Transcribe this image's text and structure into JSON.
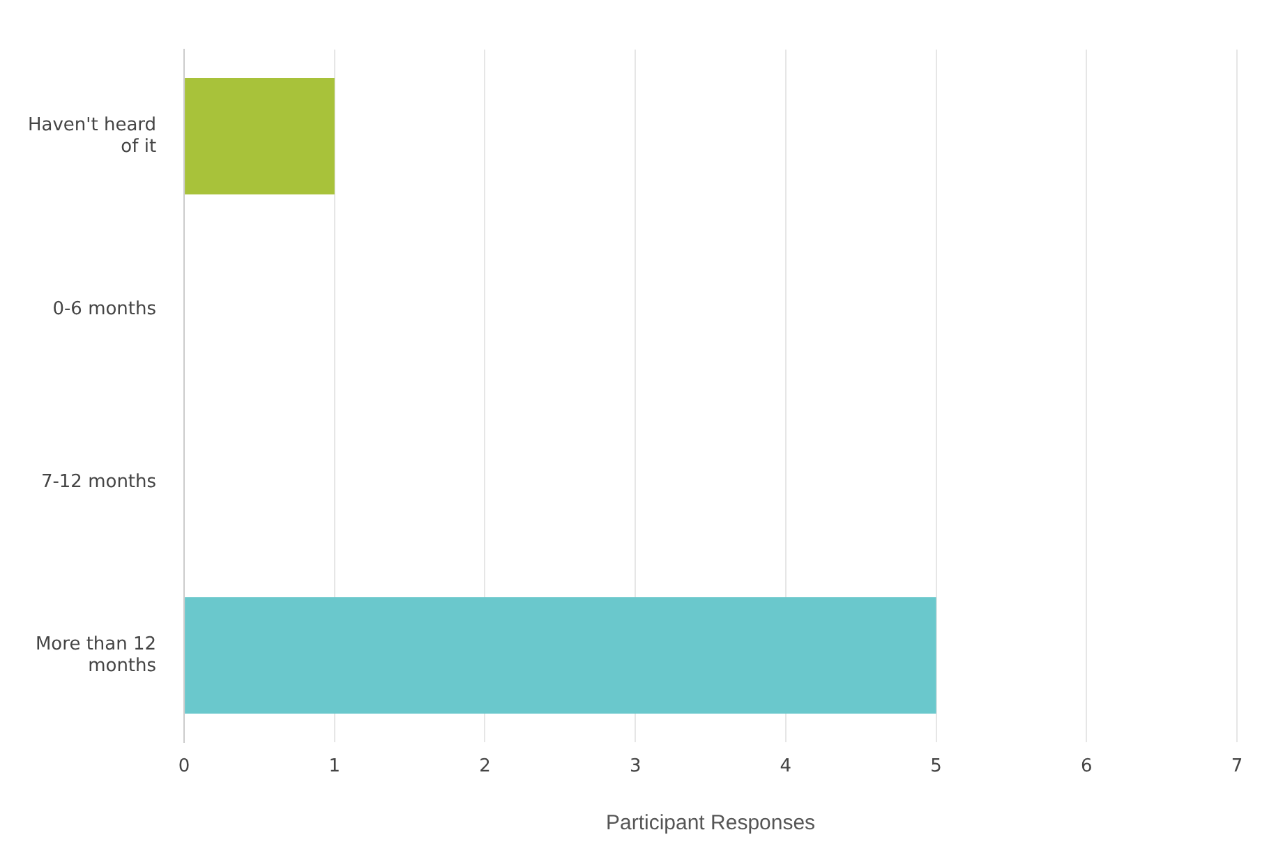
{
  "chart_data": {
    "type": "bar",
    "orientation": "horizontal",
    "xlabel": "Participant Responses",
    "categories": [
      "Haven't heard of it",
      "0-6 months",
      "7-12 months",
      "More than 12 months"
    ],
    "values": [
      1,
      0,
      0,
      5
    ],
    "colors": [
      "#a8c23a",
      "#6ac8cc",
      "#6ac8cc",
      "#6ac8cc"
    ],
    "xlim": [
      0,
      7
    ],
    "xticks": [
      0,
      1,
      2,
      3,
      4,
      5,
      6,
      7
    ],
    "grid": "x",
    "legend": false
  }
}
